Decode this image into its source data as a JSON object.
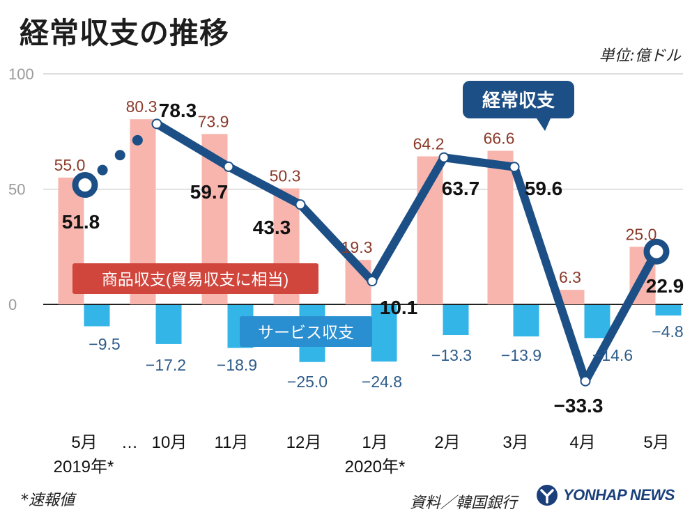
{
  "title": "経常収支の推移",
  "unit": "単位:億ドル",
  "footnote": "*速報値",
  "source": "資料／韓国銀行",
  "brand": "YONHAP NEWS",
  "colors": {
    "goods": "#f7b5ad",
    "goods_label_bg": "#d0463d",
    "services": "#33b5e8",
    "services_label_bg": "#2a8fd0",
    "current": "#1c4f85",
    "goods_value_text": "#8a3a2a",
    "services_value_text": "#2e5c8a"
  },
  "chart_data": {
    "type": "bar",
    "categories": [
      "5月",
      "10月",
      "11月",
      "12月",
      "1月",
      "2月",
      "3月",
      "4月",
      "5月"
    ],
    "year_labels": [
      {
        "category_index": 0,
        "text": "2019年*"
      },
      {
        "category_index": 4,
        "text": "2020年*"
      }
    ],
    "ellipsis_label": "…",
    "yticks": [
      0,
      50,
      100
    ],
    "ylim": [
      -38,
      100
    ],
    "series": [
      {
        "name": "商品収支(貿易収支に相当)",
        "type": "bar",
        "values": [
          55.0,
          80.3,
          73.9,
          50.3,
          19.3,
          64.2,
          66.6,
          6.3,
          25.0
        ]
      },
      {
        "name": "サービス収支",
        "type": "bar",
        "values": [
          -9.5,
          -17.2,
          -18.9,
          -25.0,
          -24.8,
          -13.3,
          -13.9,
          -14.6,
          -4.8
        ]
      },
      {
        "name": "経常収支",
        "type": "line",
        "values": [
          51.8,
          78.3,
          59.7,
          43.3,
          10.1,
          63.7,
          59.6,
          -33.3,
          22.9
        ]
      }
    ],
    "goods_labels": [
      "55.0",
      "80.3",
      "73.9",
      "50.3",
      "19.3",
      "64.2",
      "66.6",
      "6.3",
      "25.0"
    ],
    "services_labels": [
      "−9.5",
      "−17.2",
      "−18.9",
      "−25.0",
      "−24.8",
      "−13.3",
      "−13.9",
      "−14.6",
      "−4.8"
    ],
    "current_labels": [
      "51.8",
      "78.3",
      "59.7",
      "43.3",
      "10.1",
      "63.7",
      "59.6",
      "−33.3",
      "22.9"
    ],
    "legend": {
      "goods": "商品収支(貿易収支に相当)",
      "services": "サービス収支",
      "current": "経常収支"
    },
    "grid": true
  }
}
